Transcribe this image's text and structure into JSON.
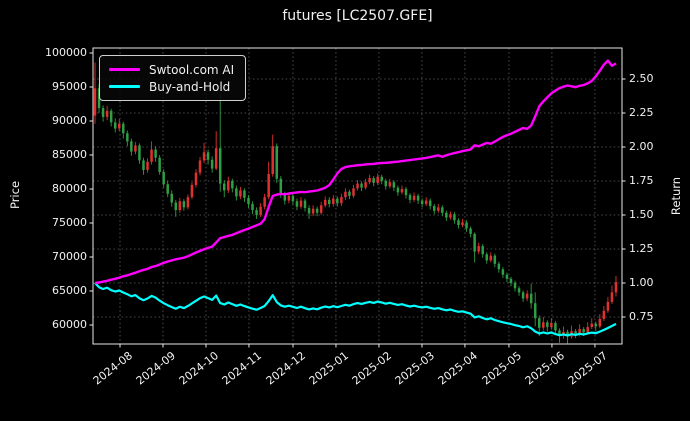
{
  "title": "futures [LC2507.GFE]",
  "axes": {
    "left_label": "Price",
    "right_label": "Return"
  },
  "legend": {
    "items": [
      {
        "label": "Swtool.com AI",
        "color": "#ff00ff"
      },
      {
        "label": "Buy-and-Hold",
        "color": "#00ffff"
      }
    ]
  },
  "colors": {
    "background": "#000000",
    "text": "#f2f2f2",
    "spine": "#e8e8e8",
    "grid": "#ffffff",
    "candle_up": "#e03131",
    "candle_down": "#2f9e44",
    "ai_line": "#ff00ff",
    "buy_hold_line": "#00ffff"
  },
  "chart_data": {
    "type": "candlestick_with_lines",
    "title": "futures [LC2507.GFE]",
    "xlabel": "",
    "ylabel_left": "Price",
    "ylabel_right": "Return",
    "grid": "dotted, aligned to right-axis ticks and month ticks",
    "legend_position": "upper left",
    "price_axis": {
      "ticks": [
        100000,
        95000,
        90000,
        85000,
        80000,
        75000,
        70000,
        65000,
        60000
      ],
      "tick_labels": [
        "100000",
        "95000",
        "90000",
        "85000",
        "80000",
        "75000",
        "70000",
        "65000",
        "60000"
      ]
    },
    "return_axis": {
      "ticks": [
        2.5,
        2.25,
        2.0,
        1.75,
        1.5,
        1.25,
        1.0,
        0.75
      ],
      "tick_labels": [
        "2.50",
        "2.25",
        "2.00",
        "1.75",
        "1.50",
        "1.25",
        "1.00",
        "0.75"
      ]
    },
    "x_ticks": [
      {
        "label": "2024-08",
        "bar": 6.19
      },
      {
        "label": "2024-09",
        "bar": 16.83
      },
      {
        "label": "2024-10",
        "bar": 27.48
      },
      {
        "label": "2024-11",
        "bar": 38.12
      },
      {
        "label": "2024-12",
        "bar": 49.02
      },
      {
        "label": "2025-01",
        "bar": 59.66
      },
      {
        "label": "2025-02",
        "bar": 70.31
      },
      {
        "label": "2025-03",
        "bar": 80.96
      },
      {
        "label": "2025-04",
        "bar": 91.6
      },
      {
        "label": "2025-05",
        "bar": 102.5
      },
      {
        "label": "2025-06",
        "bar": 113.14
      },
      {
        "label": "2025-07",
        "bar": 123.79
      }
    ],
    "series": [
      {
        "name": "OHLC candles",
        "axis": "left",
        "type": "candlestick",
        "up_color": "#e03131",
        "down_color": "#2f9e44"
      },
      {
        "name": "Swtool.com AI",
        "axis": "right",
        "type": "line",
        "color": "#ff00ff",
        "values_key": "ai_return"
      },
      {
        "name": "Buy-and-Hold",
        "axis": "right",
        "type": "line",
        "color": "#00ffff",
        "derivation": "close / first_close"
      }
    ],
    "candles_ohlc": [
      [
        90800,
        98600,
        89600,
        94800
      ],
      [
        94800,
        95400,
        91200,
        91900
      ],
      [
        91900,
        92300,
        89900,
        90600
      ],
      [
        90600,
        92200,
        90100,
        91500
      ],
      [
        91500,
        91800,
        89200,
        89800
      ],
      [
        89800,
        90400,
        88300,
        88900
      ],
      [
        88900,
        90300,
        88500,
        89600
      ],
      [
        89600,
        89900,
        87400,
        88200
      ],
      [
        88200,
        88600,
        86300,
        87000
      ],
      [
        87000,
        87400,
        84900,
        85500
      ],
      [
        85500,
        86900,
        85100,
        86400
      ],
      [
        86400,
        86700,
        83700,
        84200
      ],
      [
        84200,
        84600,
        82100,
        82800
      ],
      [
        82800,
        84500,
        82400,
        84000
      ],
      [
        84000,
        87000,
        83600,
        85800
      ],
      [
        85800,
        86300,
        84000,
        84600
      ],
      [
        84600,
        85000,
        82100,
        82500
      ],
      [
        82500,
        82900,
        80200,
        80700
      ],
      [
        80700,
        81200,
        78800,
        79300
      ],
      [
        79300,
        79800,
        77400,
        78000
      ],
      [
        78000,
        78400,
        75900,
        76900
      ],
      [
        76900,
        78700,
        76500,
        78200
      ],
      [
        78200,
        78500,
        76800,
        77300
      ],
      [
        77300,
        79200,
        77000,
        78800
      ],
      [
        78800,
        81000,
        78500,
        80600
      ],
      [
        80600,
        82900,
        80200,
        82400
      ],
      [
        82400,
        84700,
        82000,
        84200
      ],
      [
        84200,
        86800,
        83800,
        85400
      ],
      [
        85400,
        85800,
        83600,
        84300
      ],
      [
        84300,
        84800,
        82400,
        83000
      ],
      [
        83000,
        88500,
        82800,
        86000
      ],
      [
        86000,
        94000,
        79600,
        80800
      ],
      [
        80800,
        81300,
        78800,
        79800
      ],
      [
        79800,
        81800,
        79400,
        81200
      ],
      [
        81200,
        81500,
        79500,
        80100
      ],
      [
        80100,
        80500,
        78300,
        78900
      ],
      [
        78900,
        80300,
        78500,
        79800
      ],
      [
        79800,
        80100,
        78100,
        78700
      ],
      [
        78700,
        79100,
        77200,
        77800
      ],
      [
        77800,
        78200,
        76300,
        76900
      ],
      [
        76900,
        77300,
        75600,
        76200
      ],
      [
        76200,
        77900,
        75900,
        77400
      ],
      [
        77400,
        79300,
        77000,
        78800
      ],
      [
        78800,
        84000,
        78500,
        82200
      ],
      [
        82200,
        88000,
        81800,
        86300
      ],
      [
        86300,
        86700,
        80900,
        81500
      ],
      [
        81500,
        81900,
        78700,
        79200
      ],
      [
        79200,
        79600,
        77700,
        78300
      ],
      [
        78300,
        79500,
        77900,
        79000
      ],
      [
        79000,
        79300,
        77600,
        78200
      ],
      [
        78200,
        78600,
        76900,
        77400
      ],
      [
        77400,
        78800,
        77100,
        78300
      ],
      [
        78300,
        78600,
        76700,
        77200
      ],
      [
        77200,
        77600,
        75600,
        76400
      ],
      [
        76400,
        77600,
        76000,
        77100
      ],
      [
        77100,
        77400,
        76000,
        76500
      ],
      [
        76500,
        78100,
        76200,
        77600
      ],
      [
        77600,
        78900,
        77300,
        78400
      ],
      [
        78400,
        78800,
        77300,
        77800
      ],
      [
        77800,
        79100,
        77400,
        78600
      ],
      [
        78600,
        78900,
        77400,
        77900
      ],
      [
        77900,
        79300,
        77500,
        78800
      ],
      [
        78800,
        80100,
        78400,
        79600
      ],
      [
        79600,
        79900,
        78500,
        79000
      ],
      [
        79000,
        80600,
        78700,
        80100
      ],
      [
        80100,
        81300,
        79800,
        80800
      ],
      [
        80800,
        81100,
        79700,
        80200
      ],
      [
        80200,
        81500,
        79900,
        81000
      ],
      [
        81000,
        82100,
        80700,
        81600
      ],
      [
        81600,
        81900,
        80400,
        80900
      ],
      [
        80900,
        82300,
        80600,
        81800
      ],
      [
        81800,
        82100,
        80700,
        81200
      ],
      [
        81200,
        81500,
        79900,
        80400
      ],
      [
        80400,
        81500,
        80100,
        81000
      ],
      [
        81000,
        81300,
        79700,
        80200
      ],
      [
        80200,
        80500,
        79000,
        79500
      ],
      [
        79500,
        80500,
        79200,
        80000
      ],
      [
        80000,
        80300,
        78600,
        79100
      ],
      [
        79100,
        79400,
        77900,
        78400
      ],
      [
        78400,
        79500,
        78100,
        79000
      ],
      [
        79000,
        79300,
        77800,
        78300
      ],
      [
        78300,
        78600,
        77300,
        77800
      ],
      [
        77800,
        78800,
        77500,
        78300
      ],
      [
        78300,
        78600,
        77000,
        77500
      ],
      [
        77500,
        77800,
        76300,
        76800
      ],
      [
        76800,
        77800,
        76500,
        77300
      ],
      [
        77300,
        77600,
        76000,
        76500
      ],
      [
        76500,
        76800,
        75300,
        75800
      ],
      [
        75800,
        76700,
        75500,
        76300
      ],
      [
        76300,
        76600,
        74900,
        75400
      ],
      [
        75400,
        75700,
        74200,
        74700
      ],
      [
        74700,
        75600,
        74400,
        75100
      ],
      [
        75100,
        75400,
        73700,
        74200
      ],
      [
        74200,
        74500,
        72900,
        73400
      ],
      [
        73400,
        73600,
        69200,
        70800
      ],
      [
        70800,
        72100,
        70400,
        71600
      ],
      [
        71600,
        71900,
        69900,
        70400
      ],
      [
        70400,
        70700,
        69000,
        69500
      ],
      [
        69500,
        70700,
        69200,
        70200
      ],
      [
        70200,
        70500,
        68500,
        69000
      ],
      [
        69000,
        69300,
        67700,
        68200
      ],
      [
        68200,
        68500,
        66900,
        67400
      ],
      [
        67400,
        67700,
        66300,
        66800
      ],
      [
        66800,
        67100,
        65700,
        66200
      ],
      [
        66200,
        66500,
        64900,
        65400
      ],
      [
        65400,
        65700,
        64300,
        64800
      ],
      [
        64800,
        65100,
        63400,
        63900
      ],
      [
        63900,
        65100,
        63500,
        64600
      ],
      [
        64600,
        66100,
        62400,
        63200
      ],
      [
        63200,
        64800,
        59800,
        61000
      ],
      [
        61000,
        61400,
        58400,
        59600
      ],
      [
        59600,
        61200,
        59200,
        60400
      ],
      [
        60400,
        60700,
        59000,
        59700
      ],
      [
        59700,
        61000,
        59300,
        60300
      ],
      [
        60300,
        60600,
        58700,
        59200
      ],
      [
        59200,
        59500,
        57400,
        58400
      ],
      [
        58400,
        59800,
        58000,
        59000
      ],
      [
        59000,
        59300,
        57300,
        58300
      ],
      [
        58300,
        59900,
        58000,
        59100
      ],
      [
        59100,
        59400,
        58100,
        58600
      ],
      [
        58600,
        60100,
        58300,
        59400
      ],
      [
        59400,
        59700,
        58400,
        58900
      ],
      [
        58900,
        60400,
        58600,
        59700
      ],
      [
        59700,
        61000,
        59400,
        60200
      ],
      [
        60200,
        60500,
        59100,
        59800
      ],
      [
        59800,
        61600,
        59500,
        60900
      ],
      [
        60900,
        62800,
        60600,
        62100
      ],
      [
        62100,
        64100,
        61800,
        63400
      ],
      [
        63400,
        65800,
        63100,
        64800
      ],
      [
        64800,
        67200,
        64200,
        66300
      ]
    ],
    "ai_return": [
      1.0,
      1.004,
      1.01,
      1.016,
      1.024,
      1.031,
      1.04,
      1.05,
      1.056,
      1.066,
      1.076,
      1.086,
      1.096,
      1.104,
      1.118,
      1.124,
      1.136,
      1.148,
      1.158,
      1.166,
      1.174,
      1.18,
      1.186,
      1.196,
      1.21,
      1.224,
      1.236,
      1.248,
      1.258,
      1.268,
      1.298,
      1.33,
      1.338,
      1.346,
      1.354,
      1.366,
      1.378,
      1.39,
      1.4,
      1.412,
      1.424,
      1.436,
      1.47,
      1.56,
      1.64,
      1.65,
      1.655,
      1.652,
      1.658,
      1.662,
      1.666,
      1.67,
      1.668,
      1.672,
      1.676,
      1.68,
      1.69,
      1.7,
      1.72,
      1.762,
      1.805,
      1.838,
      1.852,
      1.858,
      1.862,
      1.866,
      1.868,
      1.872,
      1.874,
      1.876,
      1.88,
      1.882,
      1.884,
      1.886,
      1.89,
      1.892,
      1.896,
      1.9,
      1.904,
      1.908,
      1.912,
      1.916,
      1.92,
      1.926,
      1.932,
      1.938,
      1.928,
      1.94,
      1.948,
      1.956,
      1.962,
      1.97,
      1.976,
      1.982,
      2.012,
      2.006,
      2.018,
      2.03,
      2.024,
      2.04,
      2.058,
      2.074,
      2.086,
      2.098,
      2.112,
      2.126,
      2.14,
      2.134,
      2.158,
      2.225,
      2.3,
      2.335,
      2.365,
      2.395,
      2.415,
      2.432,
      2.444,
      2.452,
      2.446,
      2.44,
      2.45,
      2.456,
      2.468,
      2.486,
      2.52,
      2.56,
      2.605,
      2.635,
      2.598,
      2.615
    ]
  }
}
